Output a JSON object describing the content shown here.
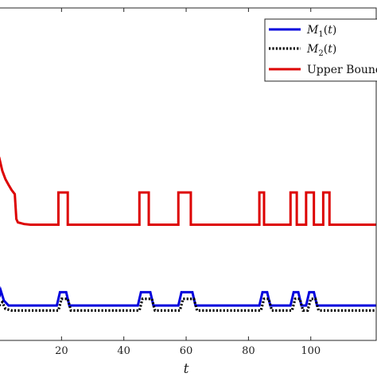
{
  "chart_data": {
    "type": "line",
    "xlabel": "t",
    "ylabel": "",
    "title": "",
    "xlim": [
      0,
      121
    ],
    "ylim": [
      0,
      10
    ],
    "x_ticks": [
      20,
      40,
      60,
      80,
      100
    ],
    "grid": false,
    "legend": "top-right",
    "series": [
      {
        "name": "M₁(t)",
        "color": "#0000dd",
        "style": "solid",
        "points": [
          [
            0,
            1.3
          ],
          [
            0.5,
            1.5
          ],
          [
            1.5,
            1.2
          ],
          [
            3,
            1.05
          ],
          [
            18.5,
            1.05
          ],
          [
            19.5,
            1.45
          ],
          [
            21.5,
            1.45
          ],
          [
            22.5,
            1.05
          ],
          [
            44.5,
            1.05
          ],
          [
            45.5,
            1.45
          ],
          [
            48.5,
            1.45
          ],
          [
            49.5,
            1.05
          ],
          [
            57.5,
            1.05
          ],
          [
            58.5,
            1.45
          ],
          [
            62,
            1.45
          ],
          [
            63,
            1.05
          ],
          [
            83.5,
            1.05
          ],
          [
            84.5,
            1.45
          ],
          [
            86,
            1.45
          ],
          [
            87,
            1.05
          ],
          [
            93.5,
            1.05
          ],
          [
            94.5,
            1.45
          ],
          [
            96,
            1.45
          ],
          [
            97,
            1.05
          ],
          [
            98.5,
            1.05
          ],
          [
            99.5,
            1.45
          ],
          [
            101,
            1.45
          ],
          [
            102,
            1.05
          ],
          [
            121,
            1.05
          ]
        ]
      },
      {
        "name": "M₂(t)",
        "color": "#000000",
        "style": "dotted",
        "points": [
          [
            0,
            1.05
          ],
          [
            1,
            1.15
          ],
          [
            2,
            0.95
          ],
          [
            4,
            0.9
          ],
          [
            19,
            0.9
          ],
          [
            20,
            1.25
          ],
          [
            22,
            1.25
          ],
          [
            23,
            0.9
          ],
          [
            45,
            0.9
          ],
          [
            46,
            1.25
          ],
          [
            49,
            1.25
          ],
          [
            50,
            0.9
          ],
          [
            58,
            0.9
          ],
          [
            59,
            1.25
          ],
          [
            62.5,
            1.25
          ],
          [
            63.5,
            0.9
          ],
          [
            84,
            0.9
          ],
          [
            85,
            1.25
          ],
          [
            86.5,
            1.25
          ],
          [
            87.5,
            0.9
          ],
          [
            94,
            0.9
          ],
          [
            95,
            1.25
          ],
          [
            96.5,
            1.25
          ],
          [
            97.5,
            0.9
          ],
          [
            99,
            0.9
          ],
          [
            100,
            1.25
          ],
          [
            101.5,
            1.25
          ],
          [
            102.5,
            0.9
          ],
          [
            121,
            0.9
          ]
        ]
      },
      {
        "name": "Upper Bound",
        "color": "#dd0000",
        "style": "solid",
        "points": [
          [
            -1,
            5.7
          ],
          [
            0,
            5.5
          ],
          [
            1,
            5.1
          ],
          [
            2,
            4.85
          ],
          [
            3,
            4.68
          ],
          [
            4,
            4.52
          ],
          [
            5,
            4.4
          ],
          [
            5.5,
            3.65
          ],
          [
            6,
            3.55
          ],
          [
            8,
            3.5
          ],
          [
            10,
            3.48
          ],
          [
            19,
            3.48
          ],
          [
            19,
            4.45
          ],
          [
            22,
            4.45
          ],
          [
            22,
            3.48
          ],
          [
            45,
            3.48
          ],
          [
            45,
            4.45
          ],
          [
            48,
            4.45
          ],
          [
            48,
            3.48
          ],
          [
            57.5,
            3.48
          ],
          [
            57.5,
            4.45
          ],
          [
            61.5,
            4.45
          ],
          [
            61.5,
            3.48
          ],
          [
            83.5,
            3.48
          ],
          [
            83.5,
            4.45
          ],
          [
            85,
            4.45
          ],
          [
            85,
            3.48
          ],
          [
            93.5,
            3.48
          ],
          [
            93.5,
            4.45
          ],
          [
            95.5,
            4.45
          ],
          [
            95.5,
            3.48
          ],
          [
            98.5,
            3.48
          ],
          [
            98.5,
            4.45
          ],
          [
            101,
            4.45
          ],
          [
            101,
            3.48
          ],
          [
            104,
            3.48
          ],
          [
            104,
            4.45
          ],
          [
            106,
            4.45
          ],
          [
            106,
            3.48
          ],
          [
            121,
            3.48
          ]
        ]
      }
    ]
  }
}
